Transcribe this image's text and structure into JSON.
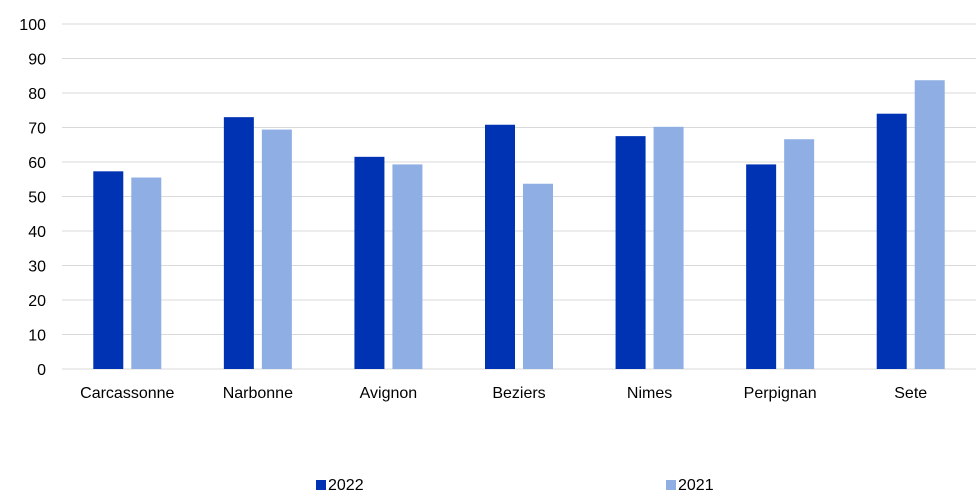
{
  "chart_data": {
    "type": "bar",
    "categories": [
      "Carcassonne",
      "Narbonne",
      "Avignon",
      "Beziers",
      "Nimes",
      "Perpignan",
      "Sete"
    ],
    "series": [
      {
        "name": "2022",
        "color": "#0033b4",
        "values": [
          57.3,
          73.0,
          61.5,
          70.8,
          67.5,
          59.3,
          74.0
        ]
      },
      {
        "name": "2021",
        "color": "#8faee4",
        "values": [
          55.5,
          69.4,
          59.3,
          53.7,
          70.2,
          66.6,
          83.7
        ]
      }
    ],
    "title": "",
    "xlabel": "",
    "ylabel": "",
    "ylim": [
      0,
      100
    ],
    "yticks": [
      "0",
      "10",
      "20",
      "30",
      "40",
      "50",
      "60",
      "70",
      "80",
      "90",
      "100"
    ],
    "grid": true,
    "legend_position": "bottom",
    "colors": {
      "gridline": "#d9d9d9",
      "axis": "#d9d9d9"
    }
  }
}
